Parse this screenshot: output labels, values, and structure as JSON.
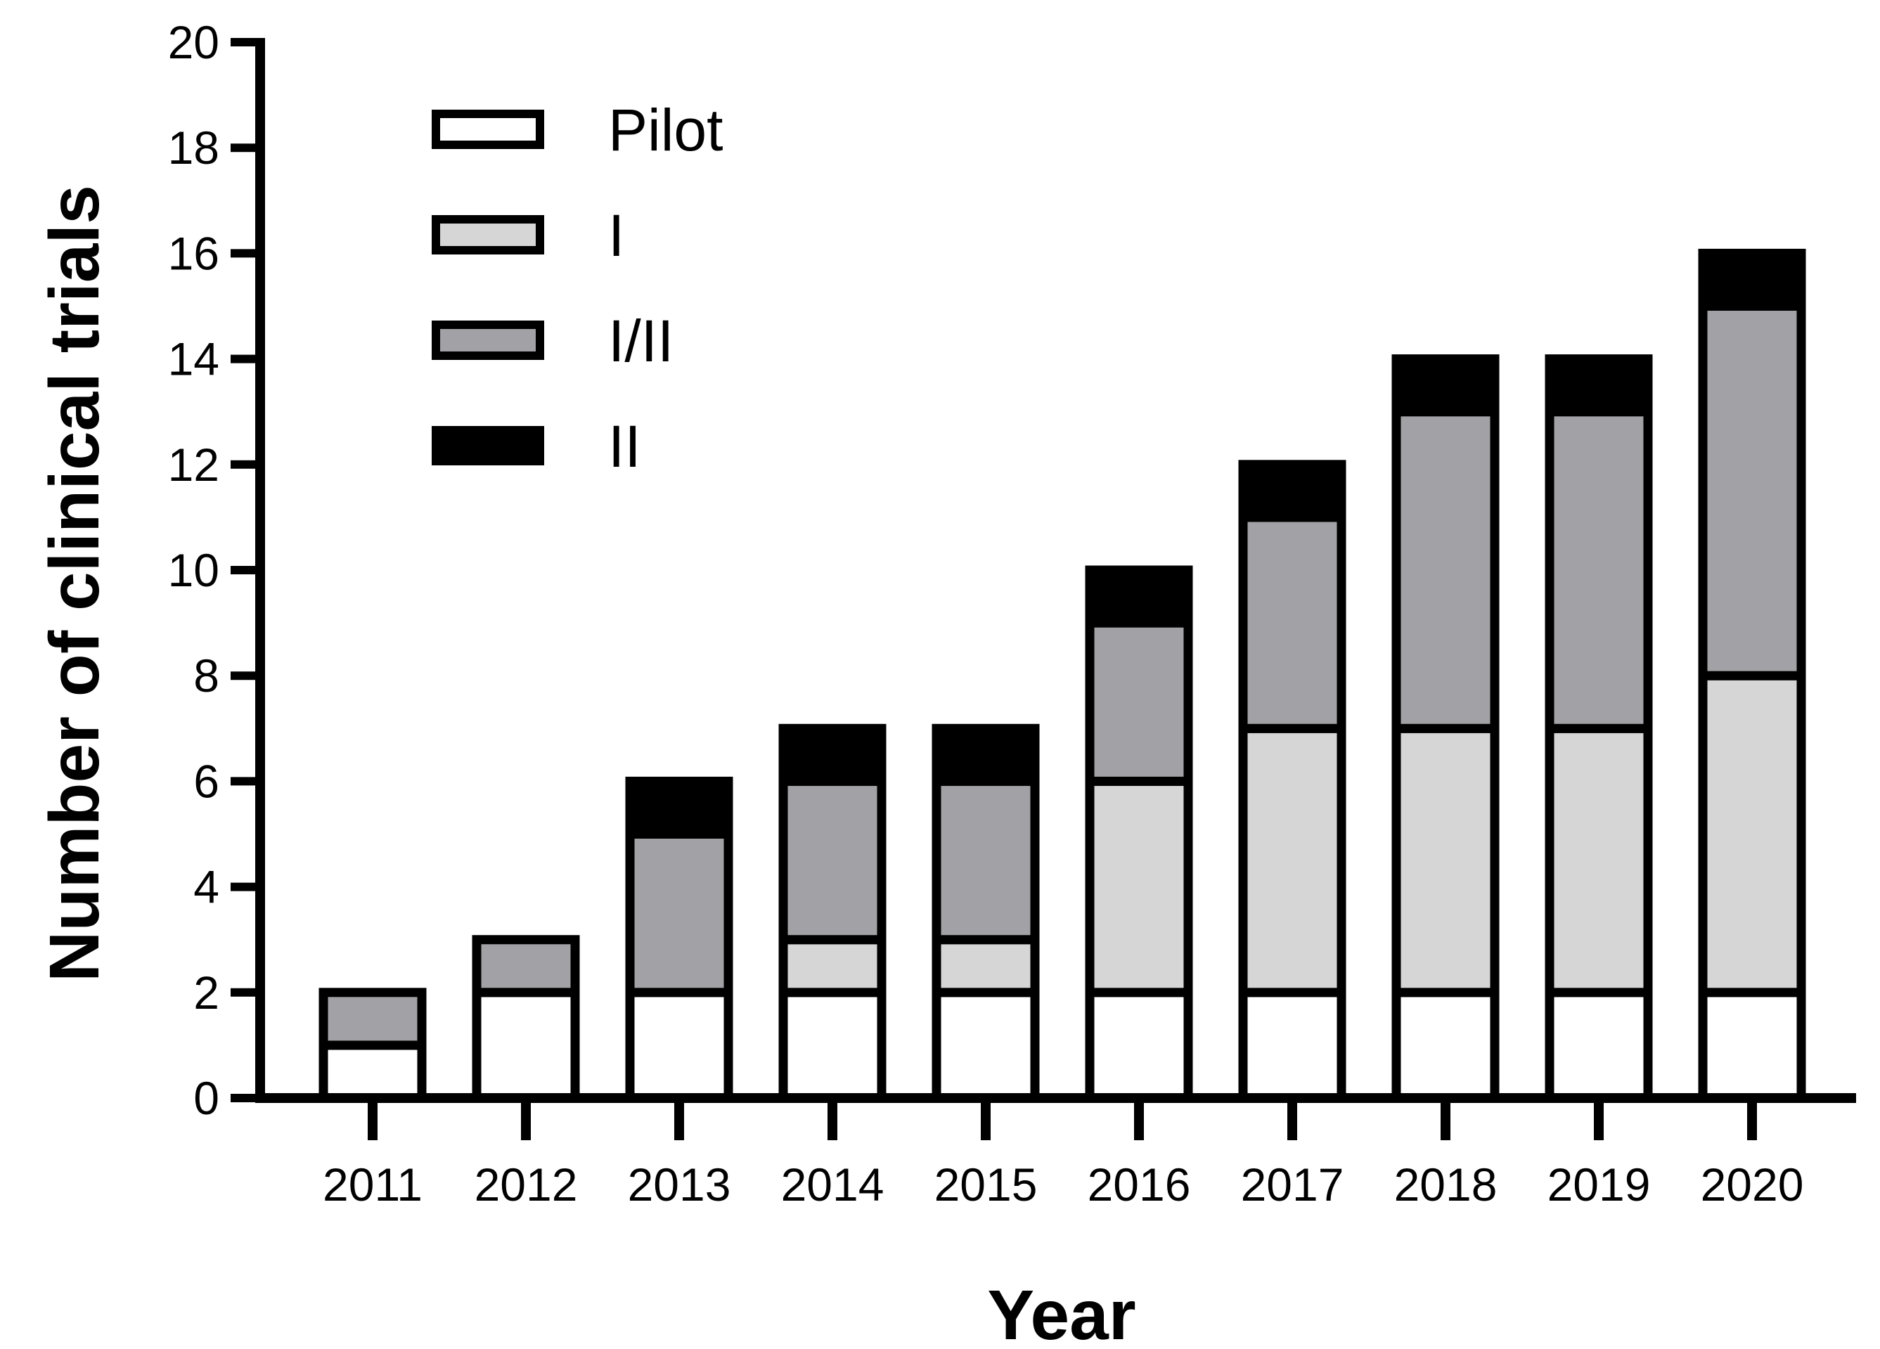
{
  "chart_data": {
    "type": "bar",
    "stacked": true,
    "title": "",
    "xlabel": "Year",
    "ylabel": "Number of clinical trials",
    "ylim": [
      0,
      20
    ],
    "yticks": [
      "0",
      "2",
      "4",
      "6",
      "8",
      "10",
      "12",
      "14",
      "16",
      "18",
      "20"
    ],
    "grid": false,
    "legend_position": "top-left",
    "categories": [
      "2011",
      "2012",
      "2013",
      "2014",
      "2015",
      "2016",
      "2017",
      "2018",
      "2019",
      "2020"
    ],
    "series": [
      {
        "name": "Pilot",
        "color": "#ffffff",
        "values": [
          1,
          2,
          2,
          2,
          2,
          2,
          2,
          2,
          2,
          2
        ]
      },
      {
        "name": "I",
        "color": "#d6d6d6",
        "values": [
          0,
          0,
          0,
          1,
          1,
          4,
          5,
          5,
          5,
          6
        ]
      },
      {
        "name": "I/II",
        "color": "#a2a2a6",
        "values": [
          1,
          1,
          3,
          3,
          3,
          3,
          4,
          6,
          6,
          7
        ]
      },
      {
        "name": "II",
        "color": "#000000",
        "values": [
          0,
          0,
          1,
          1,
          1,
          1,
          1,
          1,
          1,
          1
        ]
      }
    ]
  }
}
